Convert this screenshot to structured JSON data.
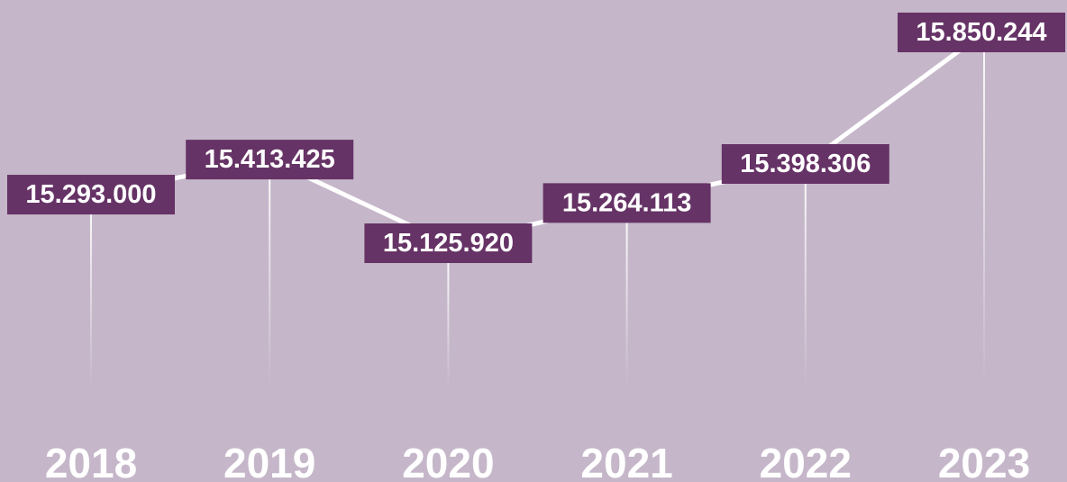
{
  "chart_data": {
    "type": "line",
    "categories": [
      "2018",
      "2019",
      "2020",
      "2021",
      "2022",
      "2023"
    ],
    "values": [
      15293000,
      15413425,
      15125920,
      15264113,
      15398306,
      15850244
    ],
    "value_labels": [
      "15.293.000",
      "15.413.425",
      "15.125.920",
      "15.264.113",
      "15.398.306",
      "15.850.244"
    ],
    "color": "#ffffff",
    "label_color": "#663366"
  }
}
